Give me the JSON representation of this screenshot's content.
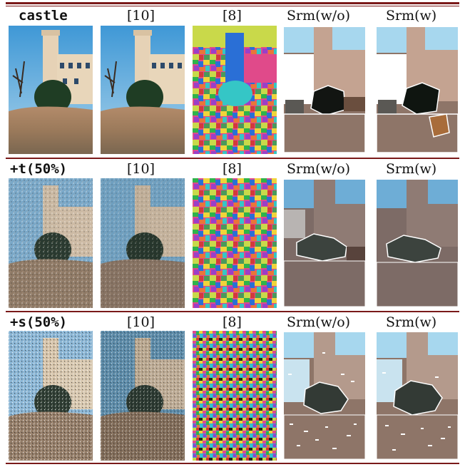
{
  "figure": {
    "rows": [
      {
        "label": "castle",
        "cols": [
          "[10]",
          "[8]",
          "Srm(w/o)",
          "Srm(w)"
        ]
      },
      {
        "label": "+t(50%)",
        "cols": [
          "[10]",
          "[8]",
          "Srm(w/o)",
          "Srm(w)"
        ]
      },
      {
        "label": "+s(50%)",
        "cols": [
          "[10]",
          "[8]",
          "Srm(w/o)",
          "Srm(w)"
        ]
      }
    ]
  },
  "colors": {
    "rule": "#7a1a1a",
    "sky": "#4fa6cf",
    "wall": "#c9a98a",
    "ground": "#8c7468",
    "bush": "#2f3a34"
  }
}
